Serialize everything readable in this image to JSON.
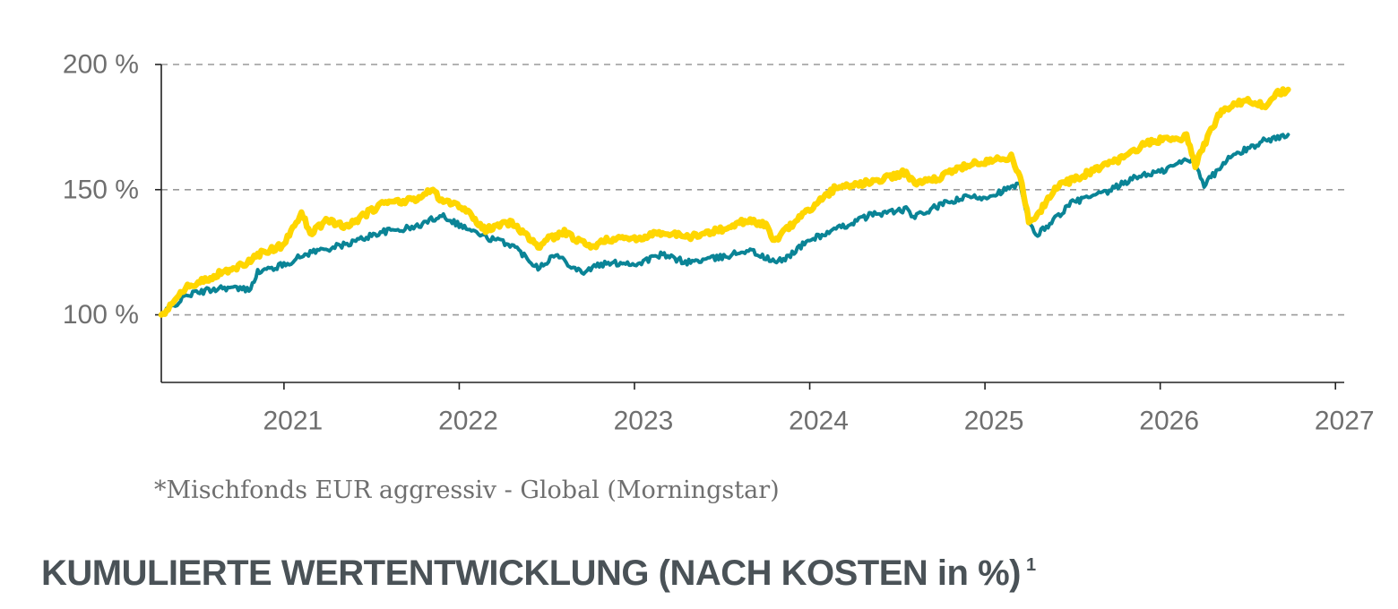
{
  "chart_data": {
    "type": "line",
    "title": "",
    "xlabel": "",
    "ylabel": "",
    "xlim": [
      2020.3,
      2027.05
    ],
    "ylim": [
      73,
      200
    ],
    "y_ticks": [
      {
        "value": 200,
        "label": "200 %"
      },
      {
        "value": 150,
        "label": "150 %"
      },
      {
        "value": 100,
        "label": "100 %"
      }
    ],
    "x_ticks": [
      {
        "value": 2021,
        "label": "2021"
      },
      {
        "value": 2022,
        "label": "2022"
      },
      {
        "value": 2023,
        "label": "2023"
      },
      {
        "value": 2024,
        "label": "2024"
      },
      {
        "value": 2025,
        "label": "2025"
      },
      {
        "value": 2026,
        "label": "2026"
      },
      {
        "value": 2027,
        "label": "2027"
      }
    ],
    "grid": "horizontal-dashed",
    "series": [
      {
        "color": "#0a8496",
        "x": [
          2020.3,
          2020.45,
          2020.65,
          2020.8,
          2020.85,
          2021.0,
          2021.15,
          2021.35,
          2021.55,
          2021.75,
          2021.9,
          2022.0,
          2022.15,
          2022.3,
          2022.45,
          2022.55,
          2022.7,
          2022.8,
          2022.95,
          2023.0,
          2023.15,
          2023.3,
          2023.5,
          2023.65,
          2023.8,
          2023.85,
          2024.0,
          2024.15,
          2024.35,
          2024.55,
          2024.6,
          2024.75,
          2024.9,
          2025.0,
          2025.2,
          2025.25,
          2025.3,
          2025.5,
          2025.7,
          2025.8,
          2025.9,
          2026.0,
          2026.15,
          2026.2,
          2026.25,
          2026.4,
          2026.55,
          2026.6,
          2026.7,
          2026.73
        ],
        "values": [
          100,
          108,
          111,
          110,
          117,
          120,
          125,
          128,
          133,
          135,
          140,
          136,
          131,
          128,
          119,
          124,
          117,
          120,
          121,
          120,
          124,
          121,
          123,
          126,
          121,
          122,
          130,
          134,
          140,
          142,
          139,
          144,
          147,
          147,
          152,
          136,
          132,
          145,
          149,
          153,
          156,
          157,
          162,
          161,
          152,
          163,
          168,
          170,
          171,
          172
        ]
      },
      {
        "color": "#ffd600",
        "x": [
          2020.3,
          2020.45,
          2020.65,
          2020.8,
          2020.85,
          2021.0,
          2021.1,
          2021.15,
          2021.25,
          2021.35,
          2021.55,
          2021.75,
          2021.85,
          2021.9,
          2022.0,
          2022.15,
          2022.3,
          2022.45,
          2022.5,
          2022.6,
          2022.75,
          2022.85,
          2022.95,
          2023.0,
          2023.15,
          2023.3,
          2023.5,
          2023.65,
          2023.75,
          2023.8,
          2023.85,
          2024.0,
          2024.15,
          2024.35,
          2024.55,
          2024.6,
          2024.75,
          2024.9,
          2025.0,
          2025.15,
          2025.2,
          2025.25,
          2025.3,
          2025.4,
          2025.6,
          2025.8,
          2025.9,
          2026.0,
          2026.15,
          2026.2,
          2026.25,
          2026.35,
          2026.5,
          2026.6,
          2026.65,
          2026.73
        ],
        "values": [
          100,
          111,
          117,
          121,
          124,
          128,
          141,
          132,
          138,
          135,
          144,
          146,
          150,
          145,
          144,
          134,
          137,
          127,
          130,
          133,
          127,
          130,
          131,
          130,
          133,
          131,
          134,
          138,
          136,
          129,
          133,
          142,
          151,
          153,
          157,
          152,
          155,
          160,
          161,
          163,
          155,
          138,
          140,
          151,
          157,
          163,
          168,
          170,
          171,
          160,
          168,
          182,
          186,
          183,
          188,
          190
        ]
      }
    ]
  },
  "footnote": "*Mischfonds EUR aggressiv - Global (Morningstar)",
  "heading": {
    "text": "KUMULIERTE WERTENTWICKLUNG (NACH KOSTEN in %)",
    "superscript": "1"
  },
  "colors": {
    "axis": "#222222",
    "grid": "#9a9a9a",
    "tick_label": "#6f6f6f",
    "heading": "#4a5257"
  }
}
